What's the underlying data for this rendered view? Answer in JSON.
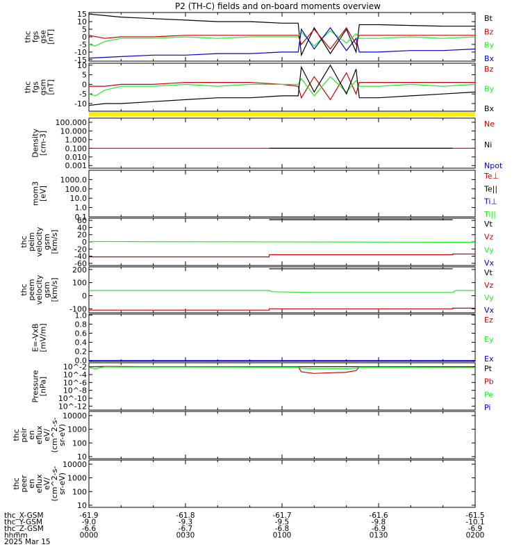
{
  "title": "P2 (TH-C) fields and on-board moments overview",
  "colors": {
    "black": "#000000",
    "red": "#cc0000",
    "green": "#22ee22",
    "blue": "#0000cc",
    "yellow": "#ffee00"
  },
  "panels": [
    {
      "ylabel": [
        "thc",
        "fgs",
        "gse",
        "[nT]"
      ],
      "ticks": [
        "15",
        "10",
        "5",
        "0",
        "-5",
        "-10",
        "-15"
      ],
      "ylim": [
        -16,
        16
      ],
      "scale": "linear",
      "legend": [
        {
          "text": "Bt",
          "color": "black"
        },
        {
          "text": "Bz",
          "color": "red"
        },
        {
          "text": "By",
          "color": "green"
        },
        {
          "text": "Bx",
          "color": "blue"
        }
      ]
    },
    {
      "ylabel": [
        "thc",
        "fgs",
        "gsm",
        "[nT]"
      ],
      "ticks": [
        "10",
        "5",
        "0",
        "-5",
        "-10"
      ],
      "ylim": [
        -14,
        11
      ],
      "scale": "linear",
      "legend": [
        {
          "text": "Bz",
          "color": "red"
        },
        {
          "text": "By",
          "color": "green"
        },
        {
          "text": "Bx",
          "color": "black"
        }
      ]
    },
    {
      "ylabel": [
        "Density",
        "[cm-3]"
      ],
      "ticks": [
        "100.000",
        "10.000",
        "1.000",
        "0.100",
        "0.010",
        "0.001"
      ],
      "ylim": [
        0.0005,
        300
      ],
      "scale": "log",
      "legend": [
        {
          "text": "Ne",
          "color": "red"
        },
        {
          "text": "Ni",
          "color": "black"
        },
        {
          "text": "Npot",
          "color": "blue"
        }
      ]
    },
    {
      "ylabel": [
        "mom3",
        "[eV]"
      ],
      "ticks": [
        "1000.0",
        "100.0",
        "10.0",
        "1.0",
        "0.1"
      ],
      "ylim": [
        0.1,
        10000
      ],
      "scale": "log",
      "legend": [
        {
          "text": "Te⊥",
          "color": "red"
        },
        {
          "text": "Te||",
          "color": "black"
        },
        {
          "text": "Ti⊥",
          "color": "blue"
        },
        {
          "text": "Ti||",
          "color": "green"
        }
      ]
    },
    {
      "ylabel": [
        "thc",
        "peim",
        "velocity",
        "gsm",
        "[km/s]"
      ],
      "ticks": [
        "60",
        "40",
        "20",
        "0",
        "-20",
        "-40",
        "-60"
      ],
      "ylim": [
        -66,
        66
      ],
      "scale": "linear",
      "legend": [
        {
          "text": "Vt",
          "color": "black"
        },
        {
          "text": "Vz",
          "color": "red"
        },
        {
          "text": "Vy",
          "color": "green"
        },
        {
          "text": "Vx",
          "color": "blue"
        }
      ]
    },
    {
      "ylabel": [
        "thc",
        "peem",
        "velocity",
        "gsm",
        "[km/s]"
      ],
      "ticks": [
        "200",
        "100",
        "0",
        "-100"
      ],
      "ylim": [
        -130,
        220
      ],
      "scale": "linear",
      "legend": [
        {
          "text": "Vt",
          "color": "black"
        },
        {
          "text": "Vz",
          "color": "red"
        },
        {
          "text": "Vy",
          "color": "green"
        },
        {
          "text": "Vx",
          "color": "blue"
        }
      ]
    },
    {
      "ylabel": [
        "E=-VxB",
        "[mV/m]"
      ],
      "ticks": [
        "1.0",
        "0.8",
        "0.6",
        "0.4",
        "0.2",
        "0.0"
      ],
      "ylim": [
        -0.02,
        1.02
      ],
      "scale": "linear",
      "legend": [
        {
          "text": "Ez",
          "color": "red"
        },
        {
          "text": "Ey",
          "color": "green"
        },
        {
          "text": "Ex",
          "color": "blue"
        }
      ]
    },
    {
      "ylabel": [
        "Pressure",
        "[nPa]"
      ],
      "ticks": [
        "10^-2",
        "10^-4",
        "10^-6",
        "10^-8",
        "10^-10",
        "10^-12"
      ],
      "ylim": [
        1e-13,
        0.1
      ],
      "scale": "log",
      "legend": [
        {
          "text": "Pt",
          "color": "black"
        },
        {
          "text": "Pb",
          "color": "red"
        },
        {
          "text": "Pe",
          "color": "green"
        },
        {
          "text": "Pi",
          "color": "blue"
        }
      ]
    },
    {
      "ylabel": [
        "thc",
        "peir",
        "en",
        "eflux",
        "eV/",
        "(cm^2-s-",
        "sr-eV)"
      ],
      "ticks": [
        "10000",
        "1000",
        "100",
        "10"
      ],
      "ylim": [
        7,
        20000
      ],
      "scale": "log",
      "legend": []
    },
    {
      "ylabel": [
        "thc",
        "peer",
        "en",
        "eflux",
        "eV/",
        "(cm^2-s-",
        "sr-eV)"
      ],
      "ticks": [
        "10000",
        "1000",
        "100",
        "10"
      ],
      "ylim": [
        7,
        20000
      ],
      "scale": "log",
      "legend": []
    }
  ],
  "xaxis": {
    "rows": [
      {
        "label": "thc_X-GSM",
        "values": [
          "-61.9",
          "-61.8",
          "-61.7",
          "-61.6",
          "-61.5"
        ]
      },
      {
        "label": "thc_Y-GSM",
        "values": [
          "-9.0",
          "-9.3",
          "-9.5",
          "-9.8",
          "-10.1"
        ]
      },
      {
        "label": "thc_Z-GSM",
        "values": [
          "-6.6",
          "-6.7",
          "-6.8",
          "-6.9",
          "-6.9"
        ]
      },
      {
        "label": "hhmm",
        "values": [
          "0000",
          "0030",
          "0100",
          "0130",
          "0200"
        ]
      }
    ],
    "date": "2025 Mar 15",
    "range_min": [
      0,
      120
    ]
  },
  "chart_data": {
    "type": "line",
    "x_unit": "minutes since 2025 Mar 15 0000",
    "panels": [
      {
        "panel": 0,
        "series": [
          {
            "name": "Bt",
            "color": "black",
            "x": [
              0,
              5,
              10,
              15,
              20,
              30,
              40,
              50,
              60,
              65,
              66,
              70,
              75,
              80,
              83,
              84,
              90,
              100,
              110,
              120
            ],
            "y": [
              15,
              14,
              13,
              12.5,
              12,
              11,
              10,
              10,
              9,
              9,
              -12,
              6,
              -11,
              5,
              -10,
              8,
              8,
              7.5,
              7,
              7
            ]
          },
          {
            "name": "Bz",
            "color": "red",
            "x": [
              0,
              5,
              10,
              20,
              30,
              40,
              50,
              60,
              65,
              66,
              70,
              75,
              80,
              83,
              84,
              90,
              100,
              110,
              120
            ],
            "y": [
              1,
              -1,
              0,
              0,
              1,
              1,
              1,
              1,
              1,
              -5,
              5,
              -8,
              6,
              -5,
              1,
              1,
              1,
              1,
              1
            ]
          },
          {
            "name": "By",
            "color": "green",
            "x": [
              0,
              2,
              5,
              10,
              20,
              30,
              40,
              50,
              60,
              65,
              66,
              70,
              75,
              80,
              83,
              84,
              90,
              100,
              110,
              120
            ],
            "y": [
              -5,
              -6,
              -3,
              -1,
              -1,
              0,
              -1,
              0,
              0,
              0,
              3,
              -6,
              4,
              -4,
              2,
              -1,
              -1,
              0,
              -1,
              0
            ]
          },
          {
            "name": "Bx",
            "color": "blue",
            "x": [
              0,
              10,
              20,
              30,
              40,
              50,
              60,
              65,
              66,
              70,
              75,
              80,
              83,
              84,
              90,
              100,
              110,
              120
            ],
            "y": [
              -14,
              -13,
              -12,
              -12,
              -11,
              -11,
              -10,
              -10,
              5,
              -8,
              6,
              -9,
              -1,
              -10,
              -10,
              -9,
              -9,
              -8
            ]
          }
        ]
      },
      {
        "panel": 1,
        "series": [
          {
            "name": "Bz",
            "color": "red",
            "x": [
              0,
              5,
              10,
              20,
              30,
              40,
              50,
              60,
              65,
              66,
              70,
              75,
              80,
              83,
              84,
              90,
              100,
              110,
              120
            ],
            "y": [
              -1,
              -1,
              0,
              0,
              1,
              1,
              1,
              0,
              -1,
              -7,
              4,
              -8,
              6,
              -5,
              1,
              1,
              1,
              1,
              1
            ]
          },
          {
            "name": "By",
            "color": "green",
            "x": [
              0,
              2,
              5,
              10,
              20,
              30,
              40,
              50,
              60,
              65,
              66,
              70,
              75,
              80,
              83,
              84,
              90,
              100,
              110,
              120
            ],
            "y": [
              -5,
              -6,
              -3,
              -1,
              -1,
              0,
              -1,
              0,
              0,
              0,
              3,
              -6,
              4,
              -4,
              2,
              -1,
              -1,
              0,
              -1,
              0
            ]
          },
          {
            "name": "Bx",
            "color": "black",
            "x": [
              0,
              5,
              10,
              20,
              30,
              40,
              50,
              60,
              65,
              66,
              70,
              75,
              80,
              83,
              84,
              90,
              100,
              110,
              120
            ],
            "y": [
              -11,
              -10,
              -10,
              -9,
              -8,
              -7,
              -7,
              -6,
              -6,
              9,
              -4,
              10,
              -5,
              8,
              -7,
              -7,
              -6,
              -5,
              -4
            ]
          }
        ]
      },
      {
        "panel": 2,
        "series": [
          {
            "name": "Ne",
            "color": "red",
            "x": [
              0,
              120
            ],
            "y": [
              0.1,
              0.1
            ]
          },
          {
            "name": "Ni",
            "color": "black",
            "x": [
              56,
              113
            ],
            "y": [
              0.1,
              0.1
            ]
          }
        ]
      },
      {
        "panel": 4,
        "series": [
          {
            "name": "Vt",
            "color": "black",
            "x": [
              56,
              113
            ],
            "y": [
              62,
              62
            ]
          },
          {
            "name": "Vz",
            "color": "red",
            "x": [
              0,
              56,
              56,
              113,
              113,
              120
            ],
            "y": [
              -42,
              -42,
              -36,
              -36,
              -34,
              -34
            ]
          },
          {
            "name": "Vy",
            "color": "green",
            "x": [
              0,
              120
            ],
            "y": [
              1,
              -1
            ]
          }
        ]
      },
      {
        "panel": 5,
        "series": [
          {
            "name": "Vt",
            "color": "black",
            "x": [
              56,
              113
            ],
            "y": [
              205,
              205
            ]
          },
          {
            "name": "Vz",
            "color": "red",
            "x": [
              0,
              56,
              56,
              113,
              113,
              120
            ],
            "y": [
              -110,
              -110,
              -100,
              -100,
              -95,
              -95
            ]
          },
          {
            "name": "Vy",
            "color": "green",
            "x": [
              0,
              56,
              57,
              70,
              113,
              114,
              120
            ],
            "y": [
              40,
              40,
              30,
              25,
              25,
              40,
              40
            ]
          }
        ]
      },
      {
        "panel": 6,
        "series": [
          {
            "name": "Ex",
            "color": "blue",
            "x": [
              0,
              120
            ],
            "y": [
              0.0,
              0.0
            ]
          }
        ]
      },
      {
        "panel": 7,
        "series": [
          {
            "name": "Pt",
            "color": "black",
            "x": [
              0,
              120
            ],
            "y": [
              0.01,
              0.01
            ]
          },
          {
            "name": "Pb",
            "color": "red",
            "x": [
              0,
              5,
              10,
              20,
              30,
              40,
              50,
              60,
              65,
              66,
              70,
              75,
              80,
              83,
              84,
              100,
              120
            ],
            "y": [
              0.01,
              0.012,
              0.011,
              0.01,
              0.01,
              0.01,
              0.01,
              0.009,
              0.009,
              0.0005,
              0.0002,
              0.0003,
              0.0004,
              0.001,
              0.008,
              0.008,
              0.007
            ]
          },
          {
            "name": "Pe",
            "color": "green",
            "x": [
              0,
              2,
              5,
              10,
              30,
              60,
              65,
              66,
              70,
              80,
              83,
              84,
              120
            ],
            "y": [
              0.006,
              0.003,
              0.009,
              0.008,
              0.008,
              0.007,
              0.007,
              0.004,
              0.003,
              0.003,
              0.004,
              0.007,
              0.006
            ]
          }
        ]
      }
    ]
  }
}
